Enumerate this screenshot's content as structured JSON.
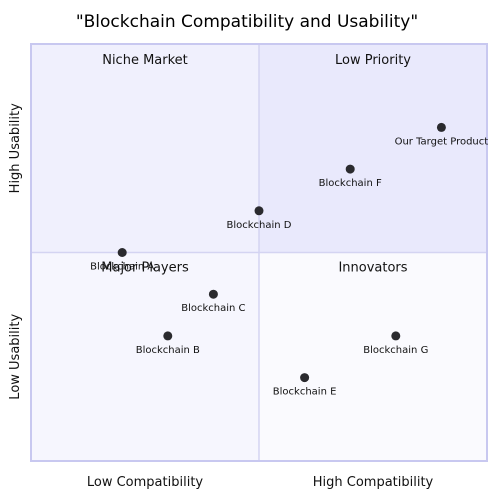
{
  "chart_data": {
    "type": "scatter",
    "title": "\"Blockchain Compatibility and Usability\"",
    "xlim": [
      0,
      1
    ],
    "ylim": [
      0,
      1
    ],
    "grid": false,
    "x_axis_labels": {
      "low": "Low Compatibility",
      "high": "High Compatibility"
    },
    "y_axis_labels": {
      "low": "Low Usability",
      "high": "High Usability"
    },
    "quadrants": {
      "top_left": {
        "label": "Niche Market",
        "color": "#f0f0fd"
      },
      "top_right": {
        "label": "Low Priority",
        "color": "#e9e9fc"
      },
      "bottom_left": {
        "label": "Major Players",
        "color": "#f6f6fe"
      },
      "bottom_right": {
        "label": "Innovators",
        "color": "#fafafe"
      }
    },
    "points": [
      {
        "label": "Blockchain A",
        "x": 0.2,
        "y": 0.5
      },
      {
        "label": "Blockchain B",
        "x": 0.3,
        "y": 0.3
      },
      {
        "label": "Blockchain C",
        "x": 0.4,
        "y": 0.4
      },
      {
        "label": "Blockchain D",
        "x": 0.5,
        "y": 0.6
      },
      {
        "label": "Blockchain E",
        "x": 0.6,
        "y": 0.2
      },
      {
        "label": "Blockchain F",
        "x": 0.7,
        "y": 0.7
      },
      {
        "label": "Blockchain G",
        "x": 0.8,
        "y": 0.3
      },
      {
        "label": "Our Target Product",
        "x": 0.9,
        "y": 0.8
      }
    ],
    "marker_color": "#2a2a2e",
    "frame_color": "#c8c8f0",
    "divider_color": "#d4d4f2"
  }
}
